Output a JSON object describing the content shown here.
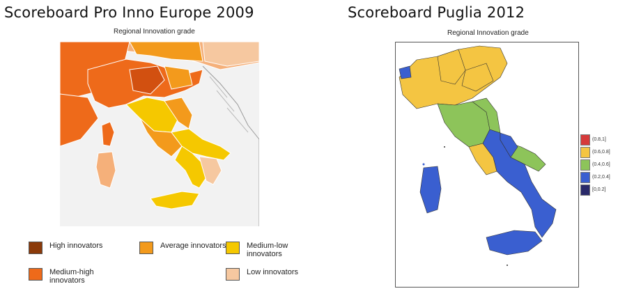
{
  "left_panel": {
    "title": "Scoreboard Pro Inno Europe 2009",
    "subtitle": "Regional Innovation grade",
    "legend": [
      {
        "id": "high",
        "label": "High innovators",
        "color": "#8b3a0a"
      },
      {
        "id": "avg",
        "label": "Average innovators",
        "color": "#f39a1c"
      },
      {
        "id": "mlow",
        "label": "Medium-low innovators",
        "color": "#f5c800"
      },
      {
        "id": "mhigh",
        "label": "Medium-high innovators",
        "color": "#ee6a1a"
      },
      {
        "id": "low",
        "label": "Low innovators",
        "color": "#f6c8a0"
      }
    ]
  },
  "right_panel": {
    "title": "Scoreboard Puglia 2012",
    "subtitle": "Regional Innovation grade",
    "legend": [
      {
        "label": "(0.8,1]",
        "color": "#d63a3a"
      },
      {
        "label": "(0.6,0.8]",
        "color": "#f4c542"
      },
      {
        "label": "(0.4,0.6]",
        "color": "#8dc45a"
      },
      {
        "label": "(0.2,0.4]",
        "color": "#3a5fd0"
      },
      {
        "label": "[0,0.2]",
        "color": "#2a2a6a"
      }
    ]
  }
}
